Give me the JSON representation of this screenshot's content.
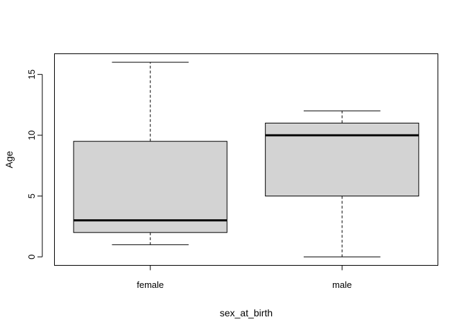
{
  "chart_data": {
    "type": "boxplot",
    "title": "",
    "xlabel": "sex_at_birth",
    "ylabel": "Age",
    "ylim": [
      -0.7,
      16.7
    ],
    "yticks": [
      0,
      5,
      10,
      15
    ],
    "categories": [
      "female",
      "male"
    ],
    "box_fill": "#d3d3d3",
    "grid": false,
    "boxes": [
      {
        "name": "female",
        "whisker_low": 1,
        "q1": 2,
        "median": 3,
        "q3": 9.5,
        "whisker_high": 16
      },
      {
        "name": "male",
        "whisker_low": 0,
        "q1": 5,
        "median": 10,
        "q3": 11,
        "whisker_high": 12
      }
    ]
  }
}
